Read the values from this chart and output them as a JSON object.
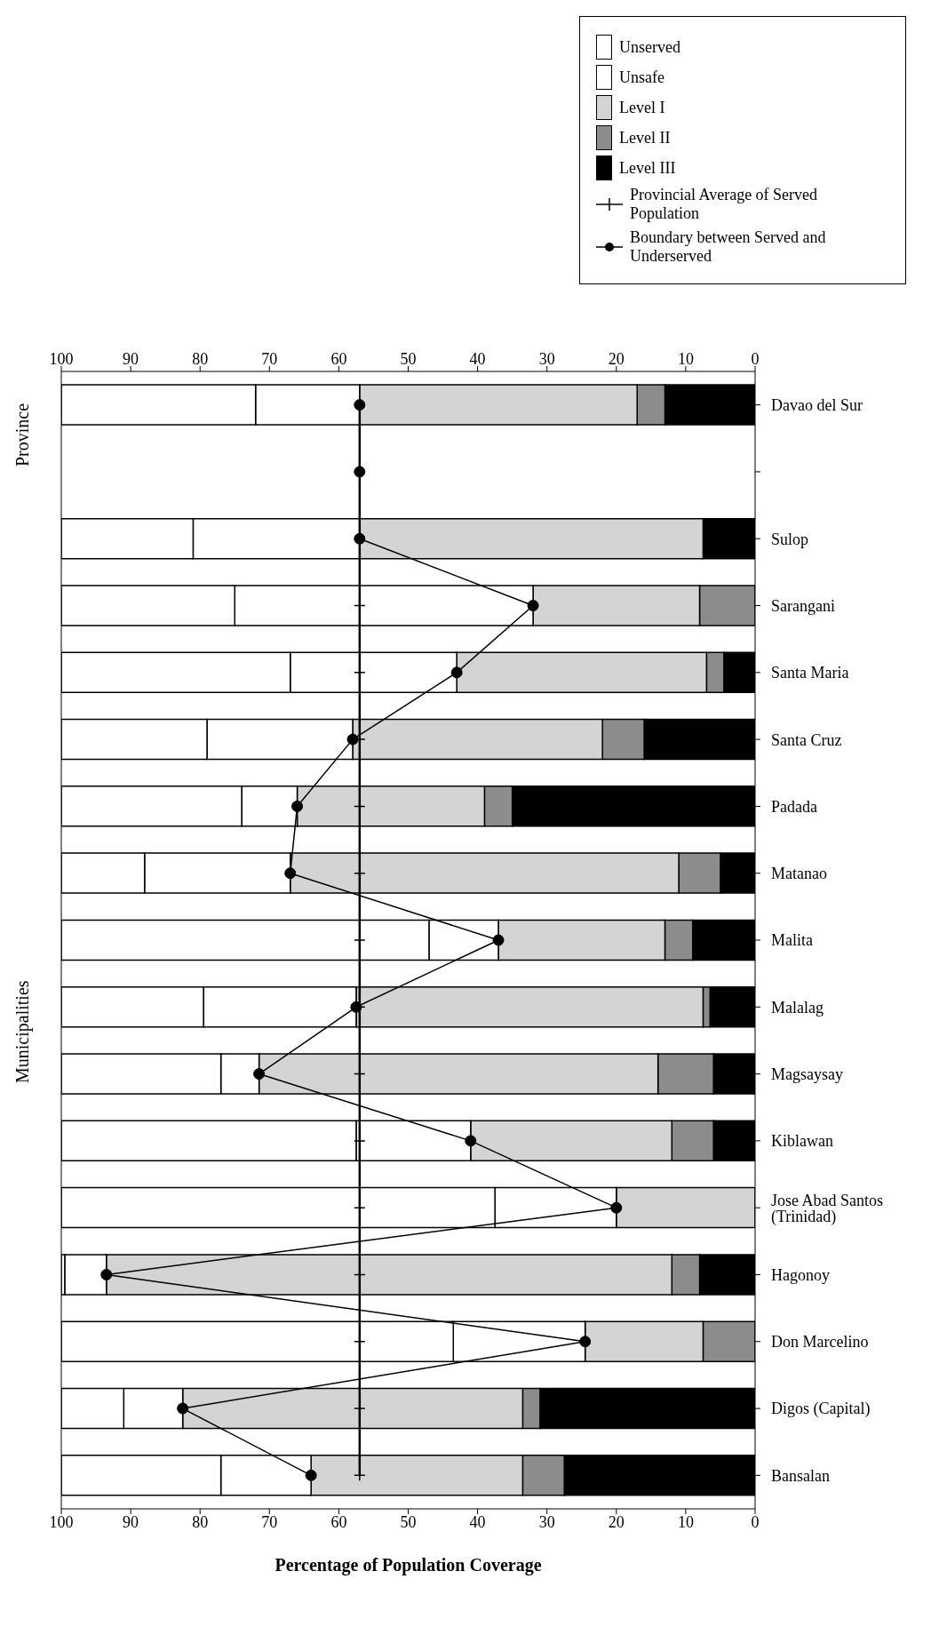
{
  "chart_data": {
    "type": "bar",
    "orientation": "horizontal",
    "stacked": true,
    "xlabel": "Percentage of Population Coverage",
    "annotations": [
      "Province",
      "Municipalities"
    ],
    "categories": [
      "Davao del Sur",
      null,
      "Sulop",
      "Sarangani",
      "Santa Maria",
      "Santa Cruz",
      "Padada",
      "Matanao",
      "Malita",
      "Malalag",
      "Magsaysay",
      "Kiblawan",
      "Jose Abad Santos (Trinidad)",
      "Hagonoy",
      "Don Marcelino",
      "Digos (Capital)",
      "Bansalan"
    ],
    "xlim": [
      100,
      0
    ],
    "xticks": [
      100,
      90,
      80,
      70,
      60,
      50,
      40,
      30,
      20,
      10,
      0
    ],
    "x2lim": [
      100,
      0
    ],
    "x2ticks": [
      100,
      90,
      80,
      70,
      60,
      50,
      40,
      30,
      20,
      10,
      0
    ],
    "legend": "top right",
    "series": [
      {
        "name": "Level III",
        "color": "#000000",
        "values": [
          13,
          null,
          7.5,
          0,
          4.5,
          16,
          35,
          5,
          9,
          6.5,
          6,
          6,
          0,
          8,
          0,
          31,
          27.5
        ]
      },
      {
        "name": "Level II",
        "color": "#8c8c8c",
        "values": [
          4,
          null,
          0,
          8,
          2.5,
          6,
          4,
          6,
          4,
          1,
          8,
          6,
          0,
          4,
          7.5,
          2.5,
          6
        ]
      },
      {
        "name": "Level I",
        "color": "#d4d4d4",
        "values": [
          40,
          null,
          49.5,
          24,
          36,
          36,
          27,
          56,
          24,
          50,
          57.5,
          29,
          20,
          81.5,
          17,
          49,
          30.5
        ]
      },
      {
        "name": "Unsafe",
        "color": "#ffffff",
        "values": [
          15,
          null,
          24,
          43,
          24,
          21,
          8,
          21,
          10,
          22,
          5.5,
          16.5,
          17.5,
          6,
          19,
          8.5,
          13
        ]
      },
      {
        "name": "Unserved",
        "color": "#ffffff",
        "values": [
          28,
          null,
          19,
          25,
          33,
          21,
          26,
          12,
          53,
          20.5,
          23,
          42.5,
          62.5,
          0.5,
          56.5,
          9,
          23
        ]
      },
      {
        "type": "line",
        "name": "Provincial Average of Served Population",
        "color": "#000000",
        "marker": "cross",
        "values": [
          57,
          57,
          57,
          57,
          57,
          57,
          57,
          57,
          57,
          57,
          57,
          57,
          57,
          57,
          57,
          57,
          57
        ]
      },
      {
        "type": "line",
        "name": "Boundary between Served and Underserved",
        "color": "#000000",
        "marker": "circle",
        "values": [
          57,
          57,
          57,
          32,
          43,
          58,
          66,
          67,
          37,
          57.5,
          71.5,
          41,
          20,
          93.5,
          24.5,
          82.5,
          64
        ]
      }
    ]
  }
}
